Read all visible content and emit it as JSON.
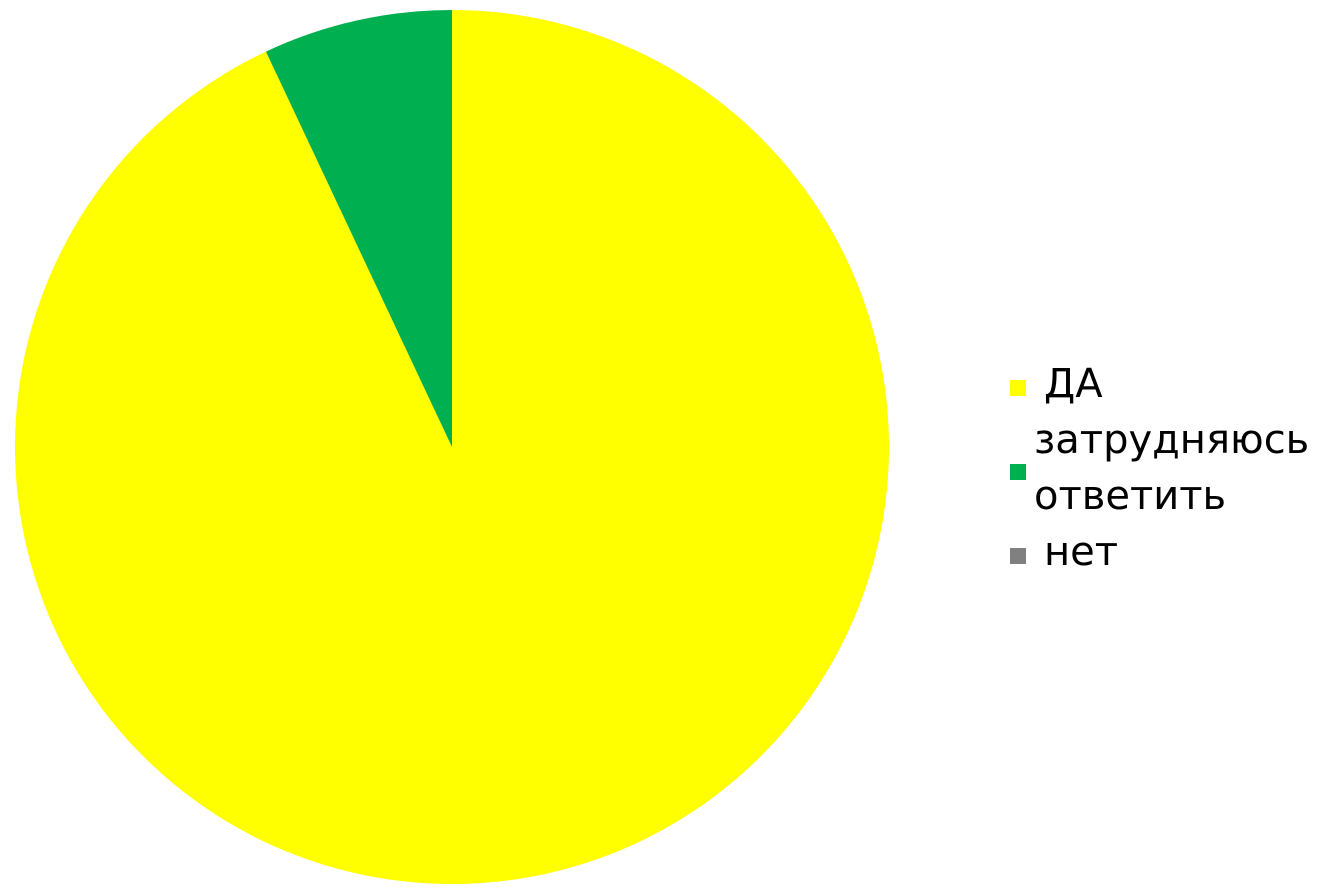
{
  "chart_data": {
    "type": "pie",
    "categories": [
      "ДА",
      "затрудняюсь ответить",
      "нет"
    ],
    "values": [
      93,
      7,
      0
    ],
    "colors": [
      "#FFFF00",
      "#00B050",
      "#808080"
    ],
    "legend_position": "right",
    "legend": [
      {
        "lines": [
          "ДА"
        ],
        "color": "#FFFF00"
      },
      {
        "lines": [
          "затрудняюсь",
          "ответить"
        ],
        "color": "#00B050"
      },
      {
        "lines": [
          "нет"
        ],
        "color": "#808080"
      }
    ]
  }
}
